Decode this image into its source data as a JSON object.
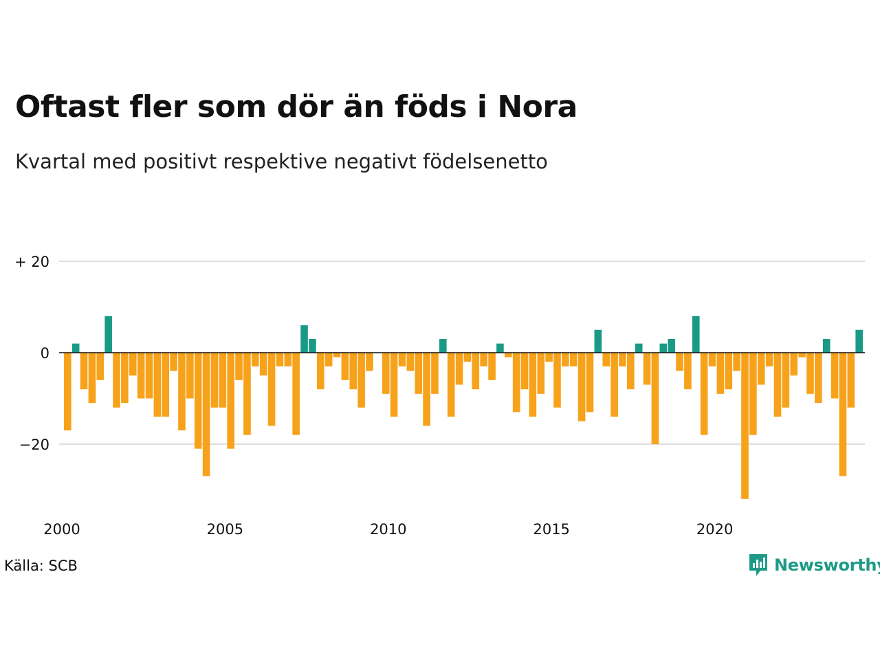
{
  "title": "Oftast fler som dör än föds i Nora",
  "subtitle": "Kvartal med positivt respektive negativt födelsenetto",
  "source": "Källa: SCB",
  "brand": "Newsworthy",
  "colors": {
    "positive": "#1a9a86",
    "negative": "#f7a21b",
    "grid": "#dddddd",
    "zero": "#111111",
    "brand": "#1d9a87"
  },
  "chart_data": {
    "type": "bar",
    "x_start_year": 2000,
    "periods_per_year": 4,
    "ylim": [
      -33,
      22
    ],
    "y_ticks": [
      {
        "value": 20,
        "label": "+ 20"
      },
      {
        "value": 0,
        "label": "0"
      },
      {
        "value": -20,
        "label": "−20"
      }
    ],
    "x_ticks": [
      {
        "value": 2000,
        "label": "2000"
      },
      {
        "value": 2005,
        "label": "2005"
      },
      {
        "value": 2010,
        "label": "2010"
      },
      {
        "value": 2015,
        "label": "2015"
      },
      {
        "value": 2020,
        "label": "2020"
      }
    ],
    "grid": true,
    "values": [
      -17,
      2,
      -8,
      -11,
      -6,
      8,
      -12,
      -11,
      -5,
      -10,
      -10,
      -14,
      -14,
      -4,
      -17,
      -10,
      -21,
      -27,
      -12,
      -12,
      -21,
      -6,
      -18,
      -3,
      -5,
      -16,
      -3,
      -3,
      -18,
      6,
      3,
      -8,
      -3,
      -1,
      -6,
      -8,
      -12,
      -4,
      0,
      -9,
      -14,
      -3,
      -4,
      -9,
      -16,
      -9,
      3,
      -14,
      -7,
      -2,
      -8,
      -3,
      -6,
      2,
      -1,
      -13,
      -8,
      -14,
      -9,
      -2,
      -12,
      -3,
      -3,
      -15,
      -13,
      5,
      -3,
      -14,
      -3,
      -8,
      2,
      -7,
      -20,
      2,
      3,
      -4,
      -8,
      8,
      -18,
      -3,
      -9,
      -8,
      -4,
      -32,
      -18,
      -7,
      -3,
      -14,
      -12,
      -5,
      -1,
      -9,
      -11,
      3,
      -10,
      -27,
      -12,
      5
    ]
  }
}
